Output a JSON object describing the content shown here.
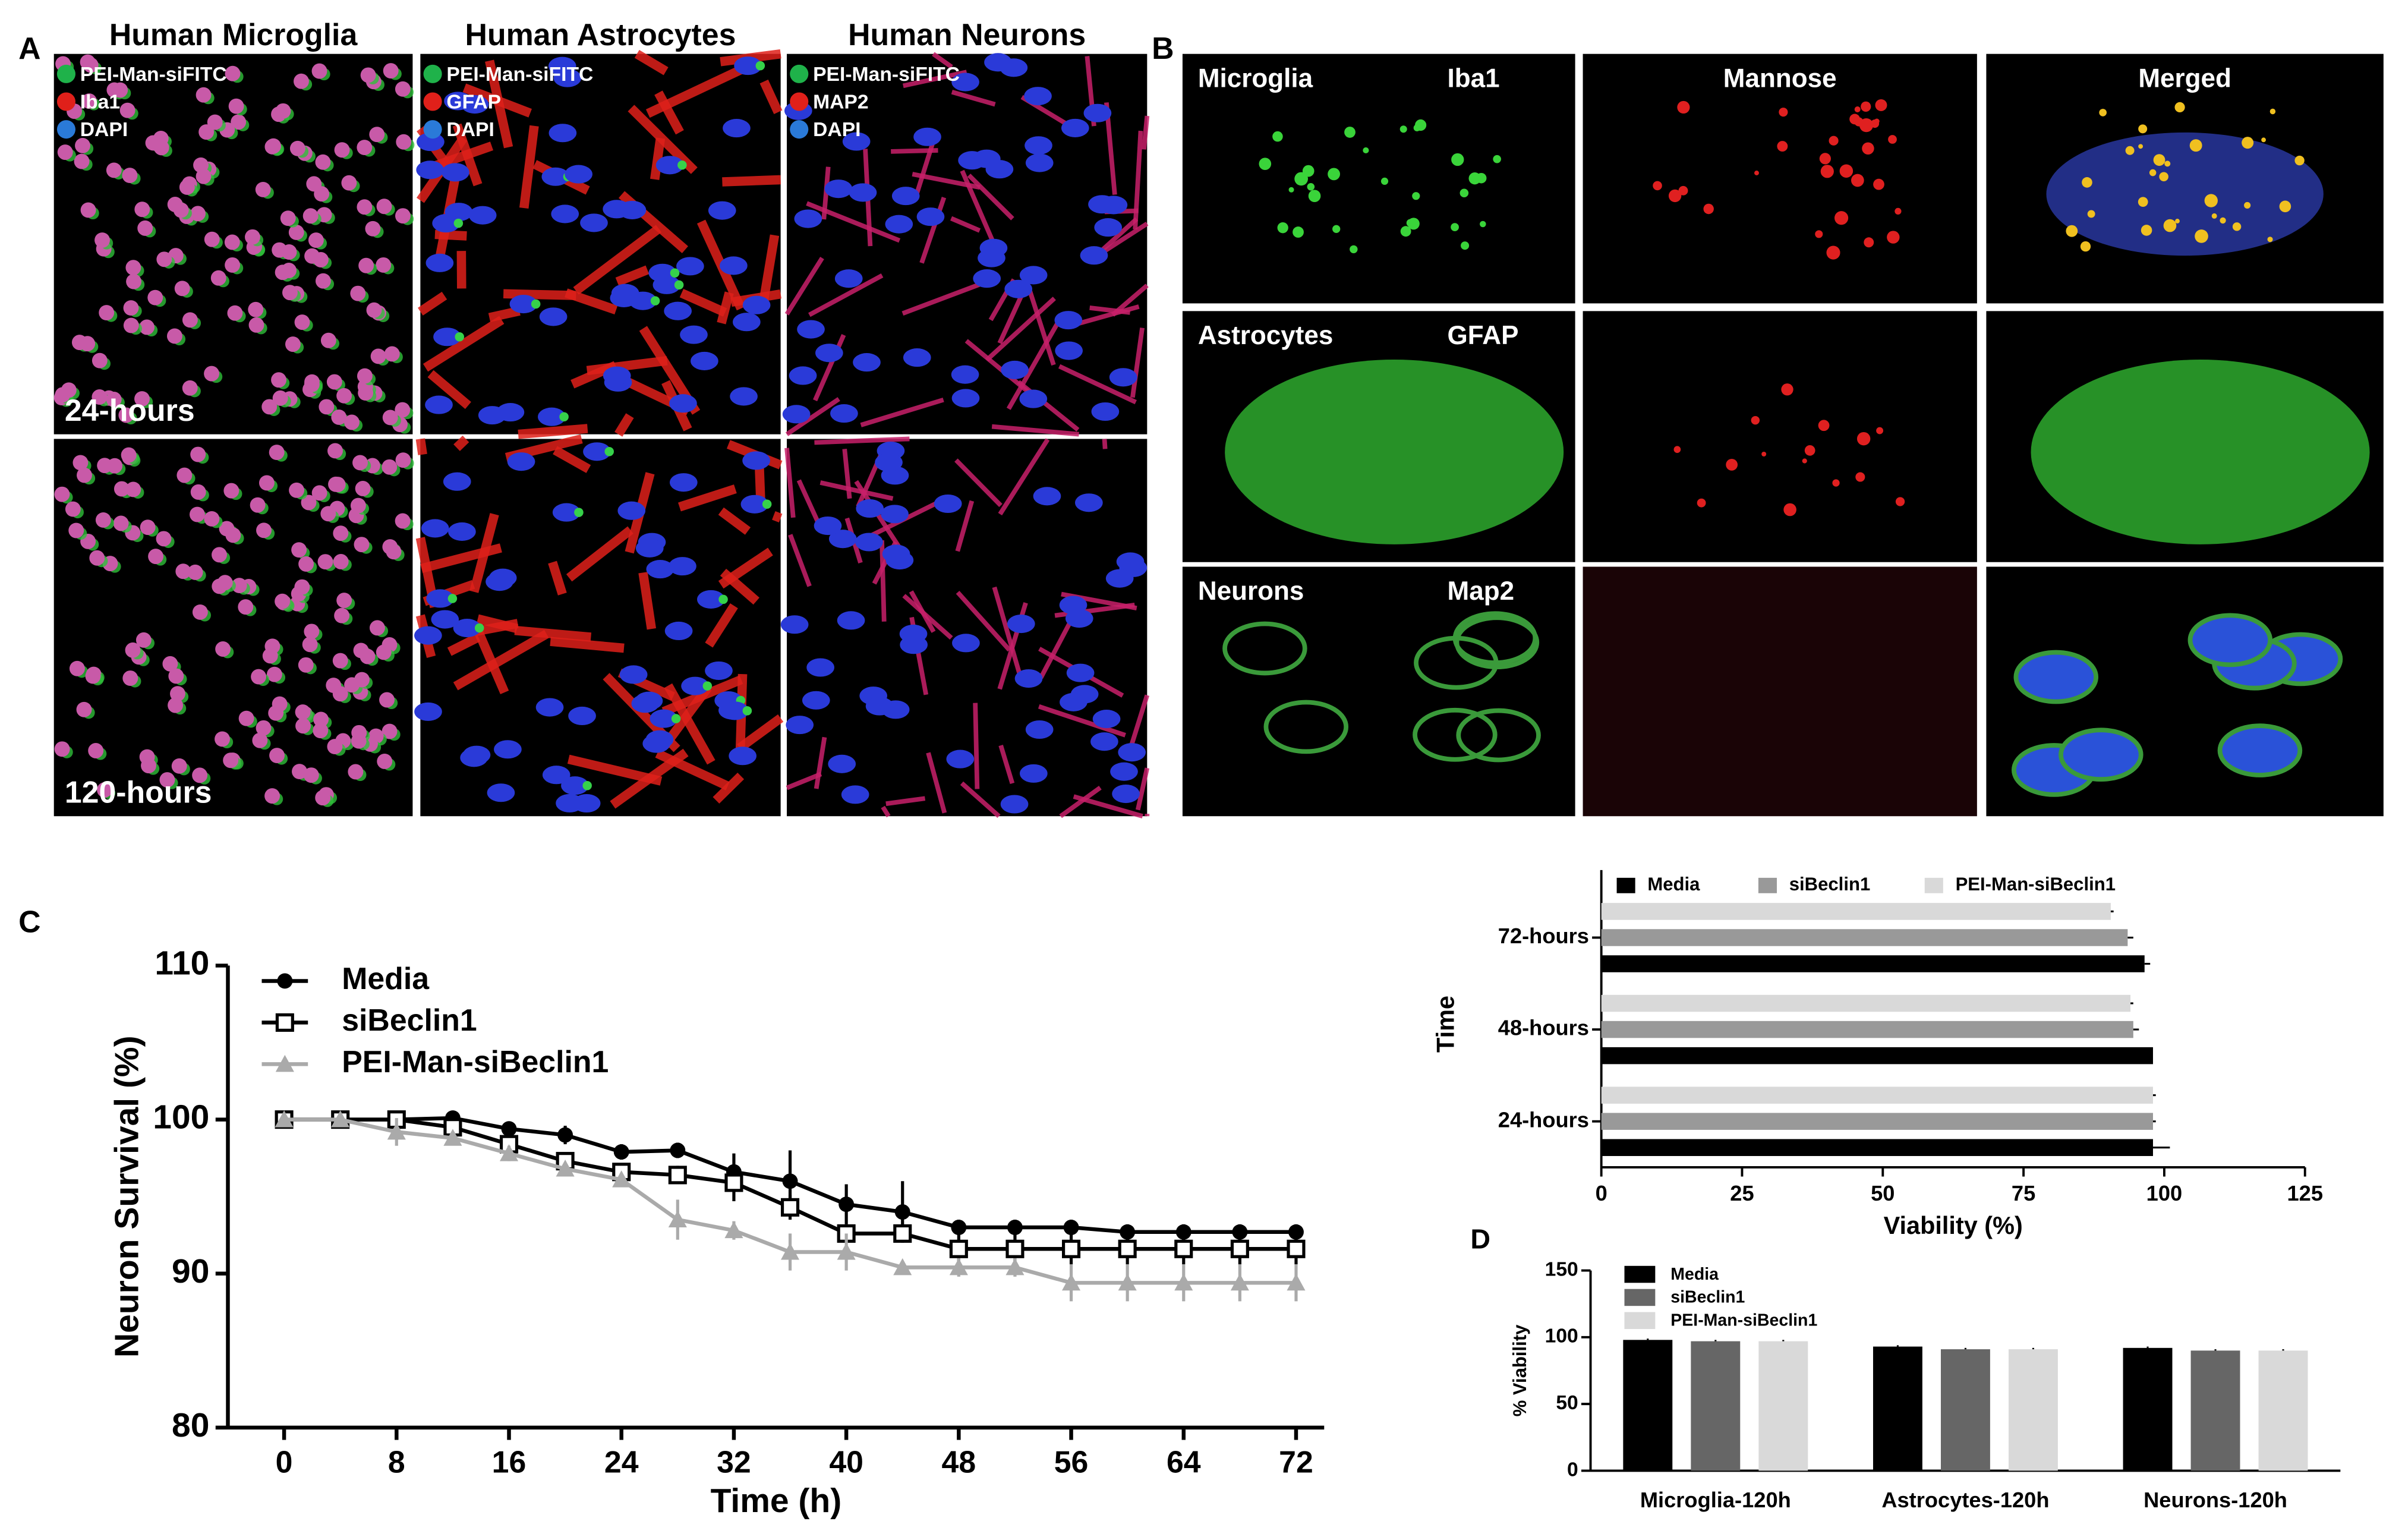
{
  "panel_a": {
    "label": "A",
    "columns": [
      "Human Microglia",
      "Human Astrocytes",
      "Human Neurons"
    ],
    "legends": [
      [
        "PEI-Man-siFITC",
        "Iba1",
        "DAPI"
      ],
      [
        "PEI-Man-siFITC",
        "GFAP",
        "DAPI"
      ],
      [
        "PEI-Man-siFITC",
        "MAP2",
        "DAPI"
      ]
    ],
    "rows": [
      "24-hours",
      "120-hours"
    ]
  },
  "panel_b": {
    "label": "B",
    "rows": [
      [
        "Microglia",
        "Iba1"
      ],
      [
        "Astrocytes",
        "GFAP"
      ],
      [
        "Neurons",
        "Map2"
      ]
    ],
    "columns": [
      "Mannose",
      "Merged"
    ]
  },
  "chart_data": [
    {
      "type": "line",
      "panel_label": "C",
      "x_label": "Time (h)",
      "y_label": "Neuron Survival (%)",
      "x": [
        0,
        4,
        8,
        12,
        16,
        20,
        24,
        28,
        32,
        36,
        40,
        44,
        48,
        52,
        56,
        60,
        64,
        68,
        72
      ],
      "xlim": [
        -4,
        74
      ],
      "xticks": [
        0,
        8,
        16,
        24,
        32,
        40,
        48,
        56,
        64,
        72
      ],
      "ylim": [
        80,
        110
      ],
      "yticks": [
        80,
        90,
        100,
        110
      ],
      "series": [
        {
          "name": "Media",
          "color": "#000000",
          "marker": "circle",
          "values": [
            100,
            100,
            100,
            100.1,
            99.4,
            99,
            97.9,
            98,
            96.6,
            96,
            94.5,
            94,
            93,
            93,
            93,
            92.7,
            92.7,
            92.7,
            92.7
          ],
          "errors": [
            0,
            0,
            0,
            0.2,
            0.3,
            0.6,
            0.5,
            0.5,
            1.2,
            2,
            1.3,
            2,
            0.5,
            0.5,
            0.5,
            0.5,
            0.5,
            0.5,
            0.5
          ]
        },
        {
          "name": "siBeclin1",
          "color": "#000000",
          "marker": "square",
          "values": [
            100,
            100,
            100,
            99.5,
            98.4,
            97.3,
            96.6,
            96.4,
            95.9,
            94.3,
            92.6,
            92.6,
            91.6,
            91.6,
            91.6,
            91.6,
            91.6,
            91.6,
            91.6
          ],
          "errors": [
            0,
            0,
            0.3,
            0.4,
            0.4,
            0.4,
            0.4,
            0.6,
            1.2,
            0.8,
            0.4,
            0.3,
            1,
            1,
            1,
            1,
            1,
            1,
            1
          ]
        },
        {
          "name": "PEI-Man-siBeclin1",
          "color": "#aaaaaa",
          "marker": "triangle",
          "values": [
            100,
            100,
            99.2,
            98.8,
            97.8,
            96.8,
            96.1,
            93.5,
            92.8,
            91.4,
            91.4,
            90.4,
            90.4,
            90.4,
            89.4,
            89.4,
            89.4,
            89.4,
            89.4
          ],
          "errors": [
            0,
            0,
            0.9,
            0.4,
            0.5,
            0.4,
            0.4,
            1.3,
            0.6,
            1.2,
            1.2,
            0,
            0.6,
            0.6,
            1.2,
            1.2,
            1.2,
            1.2,
            1.2
          ]
        }
      ]
    },
    {
      "type": "barh",
      "x_label": "Viability (%)",
      "y_label": "Time",
      "categories": [
        "72-hours",
        "48-hours",
        "24-hours"
      ],
      "xlim": [
        0,
        125
      ],
      "xticks": [
        0,
        25,
        50,
        75,
        100,
        125
      ],
      "series": [
        {
          "name": "Media",
          "color": "#000000",
          "values": [
            96.5,
            98,
            98
          ],
          "errors": [
            1,
            0,
            3
          ]
        },
        {
          "name": "siBeclin1",
          "color": "#999999",
          "values": [
            93.5,
            94.5,
            98
          ],
          "errors": [
            1,
            1,
            0.5
          ]
        },
        {
          "name": "PEI-Man-siBeclin1",
          "color": "#d9d9d9",
          "values": [
            90.5,
            94,
            98
          ],
          "errors": [
            0.5,
            0.5,
            0.5
          ]
        }
      ]
    },
    {
      "type": "bar",
      "panel_label": "D",
      "y_label": "% Viability",
      "categories": [
        "Microglia-120h",
        "Astrocytes-120h",
        "Neurons-120h"
      ],
      "ylim": [
        0,
        150
      ],
      "yticks": [
        0,
        50,
        100,
        150
      ],
      "series": [
        {
          "name": "Media",
          "color": "#000000",
          "values": [
            98,
            93,
            92
          ],
          "errors": [
            1,
            1,
            1
          ]
        },
        {
          "name": "siBeclin1",
          "color": "#666666",
          "values": [
            97,
            91,
            90
          ],
          "errors": [
            1,
            1,
            1
          ]
        },
        {
          "name": "PEI-Man-siBeclin1",
          "color": "#d9d9d9",
          "values": [
            97,
            91,
            90
          ],
          "errors": [
            1,
            1,
            1
          ]
        }
      ]
    }
  ]
}
